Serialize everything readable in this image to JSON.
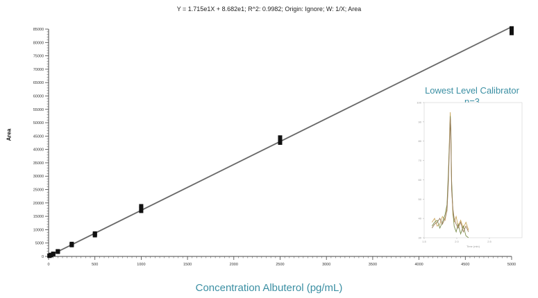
{
  "chart_data": [
    {
      "type": "scatter",
      "title": "Y = 1.715e1X + 8.682e1; R^2: 0.9982; Origin: Ignore; W: 1/X; Area",
      "xlabel": "Concentration Albuterol (pg/mL)",
      "ylabel": "Area",
      "xlim": [
        0,
        5000
      ],
      "ylim": [
        0,
        85000
      ],
      "x_ticks": [
        "0",
        "500",
        "1000",
        "1500",
        "2000",
        "2500",
        "3000",
        "3500",
        "4000",
        "4500",
        "5000"
      ],
      "y_ticks": [
        "0",
        "5000",
        "10000",
        "15000",
        "20000",
        "25000",
        "30000",
        "35000",
        "40000",
        "45000",
        "50000",
        "55000",
        "60000",
        "65000",
        "70000",
        "75000",
        "80000",
        "85000"
      ],
      "fit": {
        "slope": 17.15,
        "intercept": 86.82
      },
      "series": [
        {
          "points": [
            [
              10,
              240
            ],
            [
              10,
              300
            ],
            [
              10,
              200
            ],
            [
              25,
              520
            ],
            [
              25,
              460
            ],
            [
              25,
              580
            ],
            [
              50,
              950
            ],
            [
              50,
              890
            ],
            [
              50,
              1020
            ],
            [
              100,
              1850
            ],
            [
              100,
              1700
            ],
            [
              100,
              1950
            ],
            [
              250,
              4400
            ],
            [
              250,
              4200
            ],
            [
              250,
              4700
            ],
            [
              500,
              8300
            ],
            [
              500,
              7900
            ],
            [
              500,
              8600
            ],
            [
              1000,
              17000
            ],
            [
              1000,
              18000
            ],
            [
              1000,
              18800
            ],
            [
              2500,
              42500
            ],
            [
              2500,
              43500
            ],
            [
              2500,
              44500
            ],
            [
              5000,
              83500
            ],
            [
              5000,
              84500
            ],
            [
              5000,
              85300
            ]
          ]
        }
      ],
      "grid": false,
      "legend": "none"
    },
    {
      "type": "line",
      "title": "Lowest Level Calibrator",
      "subtitle": "n=3",
      "xlabel": "Time (min)",
      "ylabel": "",
      "xlim": [
        1.5,
        3.0
      ],
      "ylim": [
        30,
        100
      ],
      "x_ticks": [
        "1.5",
        "2.0",
        "2.5"
      ],
      "y_ticks": [
        "30",
        "40",
        "50",
        "60",
        "70",
        "80",
        "90",
        "100"
      ],
      "series": [
        {
          "color": "#c9a55a",
          "x": [
            1.62,
            1.66,
            1.7,
            1.74,
            1.78,
            1.82,
            1.85,
            1.87,
            1.89,
            1.9,
            1.91,
            1.92,
            1.94,
            1.96,
            1.99,
            2.02,
            2.06,
            2.1,
            2.14,
            2.18
          ],
          "y": [
            38,
            40,
            36,
            37,
            41,
            39,
            45,
            60,
            85,
            95,
            84,
            58,
            42,
            38,
            41,
            36,
            39,
            35,
            38,
            34
          ]
        },
        {
          "color": "#7a8c4a",
          "x": [
            1.62,
            1.66,
            1.7,
            1.74,
            1.78,
            1.82,
            1.85,
            1.87,
            1.89,
            1.9,
            1.91,
            1.92,
            1.94,
            1.96,
            1.99,
            2.02,
            2.06,
            2.1,
            2.14,
            2.18
          ],
          "y": [
            36,
            38,
            39,
            35,
            38,
            42,
            47,
            63,
            82,
            93,
            86,
            60,
            44,
            36,
            33,
            37,
            32,
            36,
            31,
            30
          ]
        },
        {
          "color": "#9a7a5a",
          "x": [
            1.62,
            1.66,
            1.7,
            1.74,
            1.78,
            1.82,
            1.85,
            1.87,
            1.89,
            1.9,
            1.91,
            1.92,
            1.94,
            1.96,
            1.99,
            2.02,
            2.06,
            2.1,
            2.14,
            2.18
          ],
          "y": [
            35,
            37,
            38,
            40,
            37,
            40,
            44,
            58,
            80,
            92,
            82,
            55,
            45,
            40,
            37,
            35,
            38,
            33,
            36,
            33
          ]
        }
      ]
    }
  ]
}
